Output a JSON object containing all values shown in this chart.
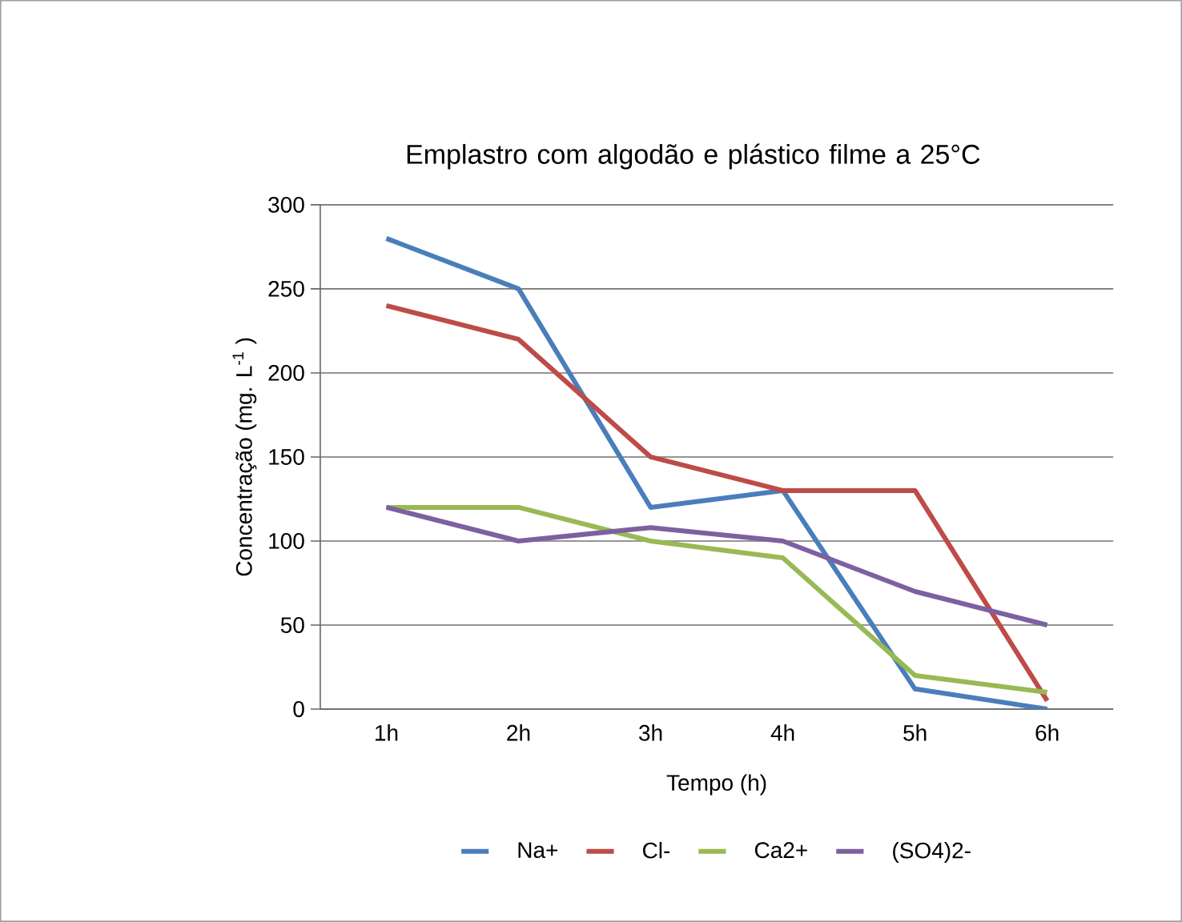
{
  "chart_data": {
    "type": "line",
    "title": "Emplastro com algodão e plástico filme a 25°C",
    "xlabel": "Tempo (h)",
    "ylabel": "Concentração (mg. L$^{-1}$ )",
    "categories": [
      "1h",
      "2h",
      "3h",
      "4h",
      "5h",
      "6h"
    ],
    "series": [
      {
        "name": "Na+",
        "color": "#4a7ebb",
        "values": [
          280,
          250,
          120,
          130,
          12,
          0
        ]
      },
      {
        "name": "Cl-",
        "color": "#be4b48",
        "values": [
          240,
          220,
          150,
          130,
          130,
          5
        ]
      },
      {
        "name": "Ca2+",
        "color": "#98b954",
        "values": [
          120,
          120,
          100,
          90,
          20,
          10
        ]
      },
      {
        "name": "(SO4)2-",
        "color": "#7d60a0",
        "values": [
          120,
          100,
          108,
          100,
          70,
          50
        ]
      }
    ],
    "ylim": [
      0,
      300
    ],
    "yticks": [
      0,
      50,
      100,
      150,
      200,
      250,
      300
    ],
    "grid": "y",
    "legend": "bottom",
    "line_style": "solid"
  }
}
